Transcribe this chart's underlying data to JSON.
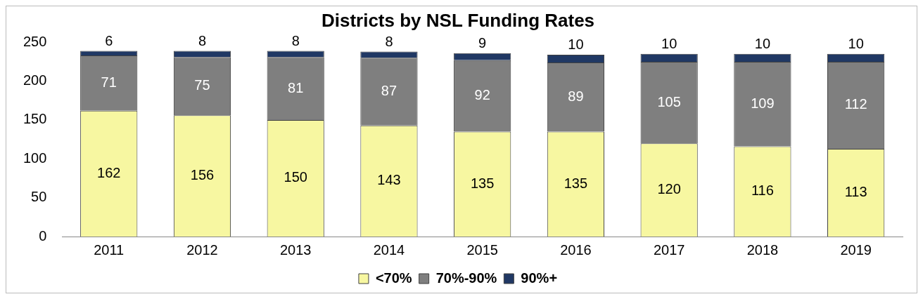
{
  "chart_data": {
    "type": "bar",
    "title": "Districts by NSL Funding Rates",
    "categories": [
      "2011",
      "2012",
      "2013",
      "2014",
      "2015",
      "2016",
      "2017",
      "2018",
      "2019"
    ],
    "series": [
      {
        "name": "<70%",
        "color": "#f7f7a1",
        "values": [
          162,
          156,
          150,
          143,
          135,
          135,
          120,
          116,
          113
        ]
      },
      {
        "name": "70%-90%",
        "color": "#7f7f7f",
        "values": [
          71,
          75,
          81,
          87,
          92,
          89,
          105,
          109,
          112
        ]
      },
      {
        "name": "90%+",
        "color": "#203864",
        "values": [
          6,
          8,
          8,
          8,
          9,
          10,
          10,
          10,
          10
        ]
      }
    ],
    "stacked": true,
    "ylim": [
      0,
      250
    ],
    "yticks": [
      0,
      50,
      100,
      150,
      200,
      250
    ],
    "grid": false,
    "legend": "bottom",
    "data_labels": true
  }
}
